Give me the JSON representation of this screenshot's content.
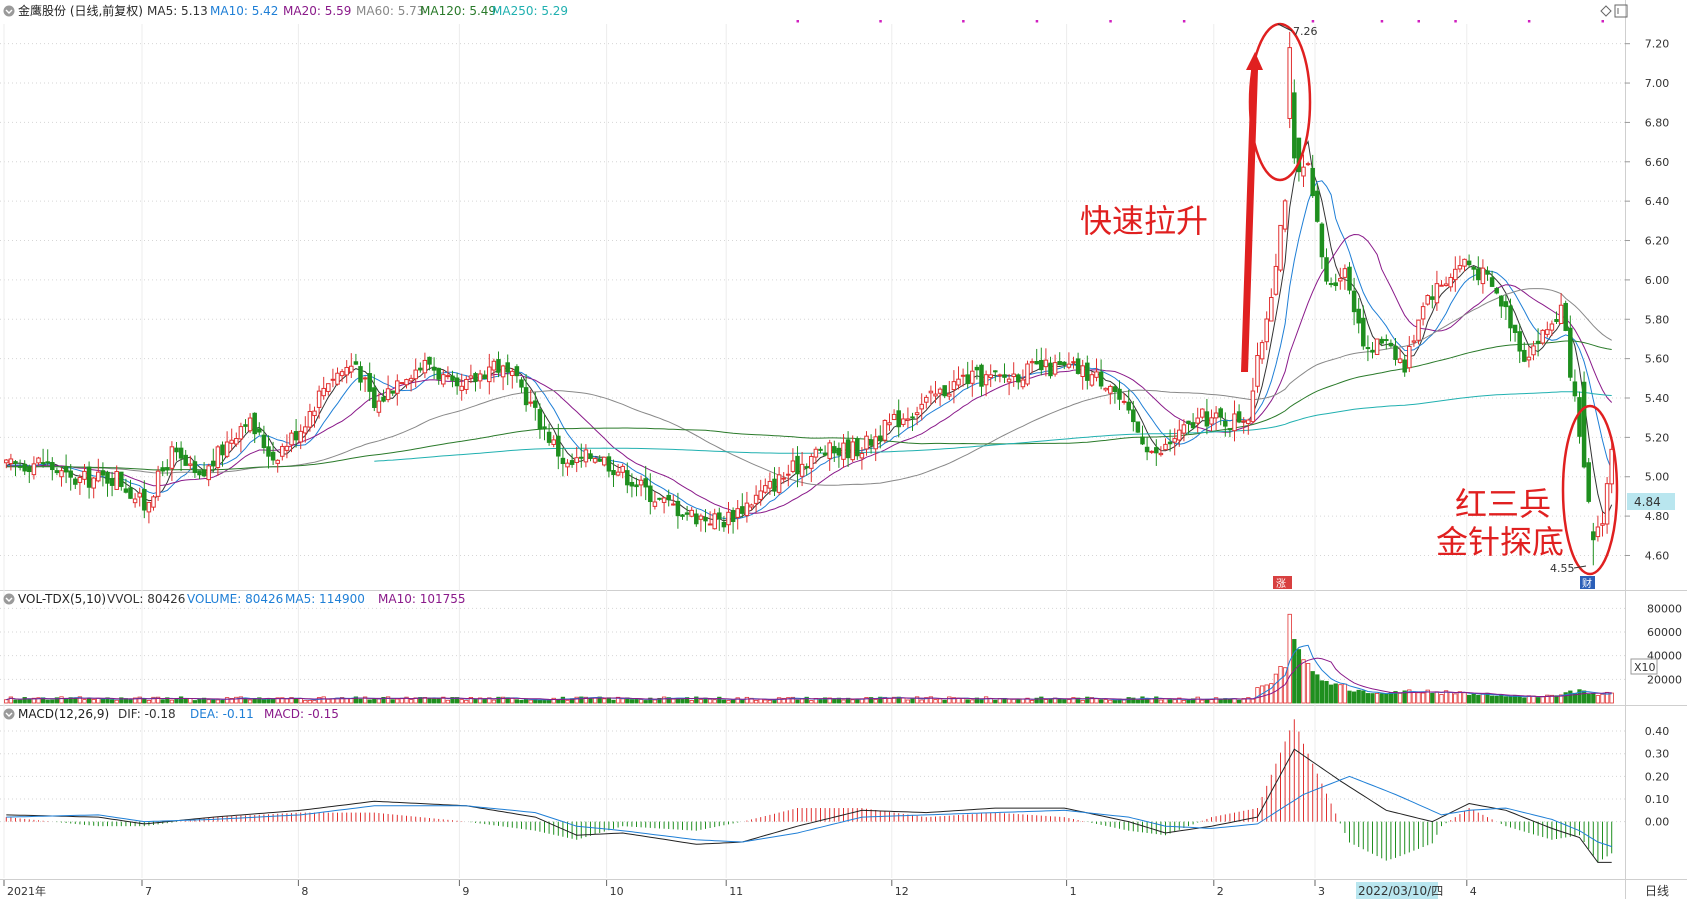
{
  "main_legend": {
    "title": "金鹰股份 (日线,前复权)",
    "items": [
      {
        "label": "MA5: 5.13",
        "color": "#333333"
      },
      {
        "label": "MA10: 5.42",
        "color": "#1f7fd6"
      },
      {
        "label": "MA20: 5.59",
        "color": "#8a1a8a"
      },
      {
        "label": "MA60: 5.73",
        "color": "#888888"
      },
      {
        "label": "MA120: 5.49",
        "color": "#2a7a2a"
      },
      {
        "label": "MA250: 5.29",
        "color": "#20b0b0"
      }
    ]
  },
  "vol_legend": {
    "title": "VOL-TDX(5,10)",
    "items": [
      {
        "label": "VVOL: 80426",
        "color": "#333333"
      },
      {
        "label": "VOLUME: 80426",
        "color": "#1f7fd6"
      },
      {
        "label": "MA5: 114900",
        "color": "#1f7fd6"
      },
      {
        "label": "MA10: 101755",
        "color": "#8a1a8a"
      }
    ]
  },
  "macd_legend": {
    "title": "MACD(12,26,9)",
    "items": [
      {
        "label": "DIF: -0.18",
        "color": "#333333"
      },
      {
        "label": "DEA: -0.11",
        "color": "#1f7fd6"
      },
      {
        "label": "MACD: -0.15",
        "color": "#8a1a8a"
      }
    ]
  },
  "annotations": {
    "rapid_rise": "快速拉升",
    "red_three_soldiers": "红三兵",
    "golden_needle": "金针探底",
    "high_label": "7.26",
    "low_label": "4.55",
    "current_price": "4.84",
    "vol_unit": "X10",
    "period": "日线",
    "cursor_date": "2022/03/10/四",
    "event_badge": "涨",
    "finance_badge": "财"
  },
  "chart_data": [
    {
      "type": "candlestick",
      "title": "金鹰股份 (日线,前复权)",
      "ylim": [
        4.45,
        7.3
      ],
      "yticks": [
        4.6,
        4.8,
        5.0,
        5.2,
        5.4,
        5.6,
        5.8,
        6.0,
        6.2,
        6.4,
        6.6,
        6.8,
        7.0,
        7.2
      ],
      "ytick_labels": [
        "4.60",
        "4.80",
        "5.00",
        "5.20",
        "5.40",
        "5.60",
        "5.80",
        "6.00",
        "6.20",
        "6.40",
        "6.60",
        "6.80",
        "7.00",
        "7.20"
      ],
      "months": [
        "2021年",
        "7",
        "8",
        "9",
        "10",
        "11",
        "12",
        "1",
        "2",
        "3",
        "4"
      ],
      "month_index": [
        0,
        30,
        64,
        99,
        131,
        157,
        193,
        231,
        263,
        285,
        318
      ],
      "num_bars": 350,
      "close_anchors": [
        [
          0,
          5.05
        ],
        [
          8,
          5.08
        ],
        [
          14,
          4.98
        ],
        [
          24,
          5.0
        ],
        [
          30,
          4.85
        ],
        [
          36,
          5.12
        ],
        [
          42,
          4.98
        ],
        [
          52,
          5.3
        ],
        [
          58,
          5.1
        ],
        [
          64,
          5.25
        ],
        [
          70,
          5.5
        ],
        [
          76,
          5.58
        ],
        [
          80,
          5.35
        ],
        [
          86,
          5.52
        ],
        [
          92,
          5.58
        ],
        [
          98,
          5.42
        ],
        [
          106,
          5.58
        ],
        [
          112,
          5.45
        ],
        [
          116,
          5.28
        ],
        [
          122,
          5.05
        ],
        [
          128,
          5.12
        ],
        [
          134,
          5.02
        ],
        [
          142,
          4.88
        ],
        [
          150,
          4.8
        ],
        [
          156,
          4.78
        ],
        [
          162,
          4.88
        ],
        [
          170,
          5.02
        ],
        [
          176,
          5.12
        ],
        [
          186,
          5.15
        ],
        [
          193,
          5.28
        ],
        [
          200,
          5.38
        ],
        [
          208,
          5.5
        ],
        [
          216,
          5.5
        ],
        [
          224,
          5.55
        ],
        [
          232,
          5.55
        ],
        [
          240,
          5.48
        ],
        [
          244,
          5.3
        ],
        [
          250,
          5.1
        ],
        [
          254,
          5.2
        ],
        [
          260,
          5.3
        ],
        [
          266,
          5.28
        ],
        [
          270,
          5.32
        ],
        [
          275,
          5.95
        ],
        [
          279,
          6.6
        ],
        [
          283,
          6.55
        ],
        [
          287,
          5.98
        ],
        [
          291,
          6.05
        ],
        [
          296,
          5.62
        ],
        [
          300,
          5.72
        ],
        [
          304,
          5.55
        ],
        [
          308,
          5.9
        ],
        [
          312,
          5.98
        ],
        [
          317,
          6.1
        ],
        [
          322,
          6.0
        ],
        [
          326,
          5.85
        ],
        [
          330,
          5.62
        ],
        [
          334,
          5.72
        ],
        [
          338,
          5.85
        ],
        [
          340,
          5.55
        ],
        [
          343,
          5.0
        ],
        [
          345,
          4.68
        ],
        [
          347,
          4.8
        ],
        [
          349,
          5.13
        ]
      ],
      "high": 7.26,
      "low": 4.55,
      "ma5_last": 5.13,
      "ma10_last": 5.42,
      "ma20_last": 5.59,
      "ma60_last": 5.73,
      "ma120_last": 5.49,
      "ma250_last": 5.29,
      "ma250_start_index": 80
    },
    {
      "type": "bar",
      "title": "VOL-TDX(5,10)",
      "ylim": [
        0,
        82000
      ],
      "yticks": [
        20000,
        40000,
        60000,
        80000
      ],
      "ytick_labels": [
        "20000",
        "40000",
        "60000",
        "80000"
      ],
      "baseline": 3500,
      "spike_values": [
        [
          272,
          12000
        ],
        [
          274,
          14000
        ],
        [
          276,
          22000
        ],
        [
          278,
          30000
        ],
        [
          279,
          75000
        ],
        [
          280,
          55000
        ],
        [
          281,
          42000
        ],
        [
          282,
          38000
        ],
        [
          283,
          34000
        ],
        [
          284,
          30000
        ],
        [
          285,
          22000
        ],
        [
          286,
          20000
        ],
        [
          288,
          18000
        ],
        [
          290,
          15000
        ],
        [
          292,
          12000
        ],
        [
          296,
          9000
        ],
        [
          300,
          8000
        ],
        [
          304,
          9000
        ],
        [
          308,
          10000
        ],
        [
          312,
          9000
        ],
        [
          316,
          8000
        ],
        [
          320,
          7500
        ],
        [
          325,
          6000
        ],
        [
          330,
          5000
        ],
        [
          335,
          6000
        ],
        [
          338,
          8000
        ],
        [
          340,
          9000
        ],
        [
          342,
          10000
        ],
        [
          344,
          8500
        ],
        [
          346,
          7000
        ],
        [
          349,
          8043
        ]
      ],
      "last": 80426,
      "ma5": 114900,
      "ma10": 101755
    },
    {
      "type": "bar",
      "title": "MACD(12,26,9)",
      "ylim": [
        -0.24,
        0.44
      ],
      "yticks": [
        0.0,
        0.1,
        0.2,
        0.3,
        0.4
      ],
      "ytick_labels": [
        "0.00",
        "0.10",
        "0.20",
        "0.30",
        "0.40"
      ],
      "dif": -0.18,
      "dea": -0.11,
      "macd": -0.15,
      "dif_anchors": [
        [
          0,
          0.03
        ],
        [
          20,
          0.02
        ],
        [
          30,
          -0.01
        ],
        [
          45,
          0.02
        ],
        [
          64,
          0.05
        ],
        [
          80,
          0.09
        ],
        [
          100,
          0.07
        ],
        [
          115,
          0.02
        ],
        [
          124,
          -0.06
        ],
        [
          134,
          -0.05
        ],
        [
          150,
          -0.1
        ],
        [
          160,
          -0.09
        ],
        [
          172,
          -0.02
        ],
        [
          186,
          0.05
        ],
        [
          200,
          0.04
        ],
        [
          215,
          0.06
        ],
        [
          230,
          0.06
        ],
        [
          244,
          0.0
        ],
        [
          252,
          -0.05
        ],
        [
          262,
          -0.02
        ],
        [
          272,
          0.02
        ],
        [
          280,
          0.32
        ],
        [
          290,
          0.18
        ],
        [
          300,
          0.05
        ],
        [
          310,
          0.0
        ],
        [
          318,
          0.08
        ],
        [
          326,
          0.05
        ],
        [
          336,
          -0.03
        ],
        [
          342,
          -0.07
        ],
        [
          346,
          -0.18
        ],
        [
          349,
          -0.18
        ]
      ],
      "dea_anchors": [
        [
          0,
          0.02
        ],
        [
          20,
          0.03
        ],
        [
          30,
          0.0
        ],
        [
          45,
          0.01
        ],
        [
          64,
          0.03
        ],
        [
          80,
          0.07
        ],
        [
          100,
          0.07
        ],
        [
          115,
          0.04
        ],
        [
          124,
          -0.02
        ],
        [
          134,
          -0.04
        ],
        [
          150,
          -0.08
        ],
        [
          160,
          -0.09
        ],
        [
          172,
          -0.05
        ],
        [
          186,
          0.02
        ],
        [
          200,
          0.03
        ],
        [
          215,
          0.04
        ],
        [
          230,
          0.05
        ],
        [
          244,
          0.02
        ],
        [
          252,
          -0.02
        ],
        [
          262,
          -0.03
        ],
        [
          272,
          -0.01
        ],
        [
          282,
          0.12
        ],
        [
          292,
          0.2
        ],
        [
          302,
          0.12
        ],
        [
          312,
          0.03
        ],
        [
          318,
          0.05
        ],
        [
          326,
          0.06
        ],
        [
          336,
          0.01
        ],
        [
          342,
          -0.04
        ],
        [
          346,
          -0.09
        ],
        [
          349,
          -0.11
        ]
      ]
    }
  ]
}
